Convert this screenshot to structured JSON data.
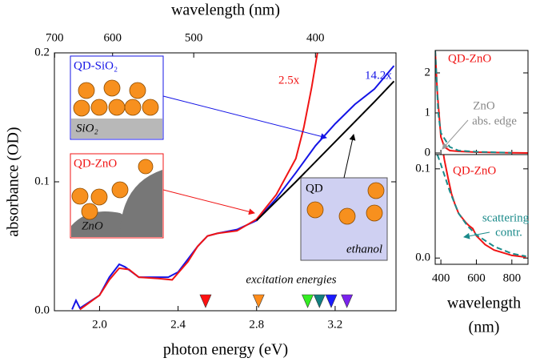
{
  "chart_data": [
    {
      "type": "line",
      "xlabel": "photon energy (eV)",
      "ylabel": "absorbance (OD)",
      "x2label": "wavelength (nm)",
      "xlim": [
        1.77,
        3.51
      ],
      "xticks": [
        {
          "value": 2,
          "label": "2.0"
        },
        2.4,
        2.8,
        3.2
      ],
      "ylim": [
        0,
        0.2
      ],
      "yticks": [
        {
          "value": 0,
          "label": "0.0"
        },
        0.1,
        0.2
      ],
      "x2ticks": [
        700,
        600,
        500,
        400
      ],
      "series": [
        {
          "name": "QD-SiO₂",
          "color": "#1414e6",
          "x": [
            1.86,
            1.88,
            1.9,
            2.0,
            2.05,
            2.1,
            2.13,
            2.2,
            2.3,
            2.35,
            2.4,
            2.45,
            2.5,
            2.55,
            2.6,
            2.7,
            2.8,
            2.9,
            3.0,
            3.1,
            3.2,
            3.3,
            3.4,
            3.5
          ],
          "values": [
            0.001,
            0.008,
            0.002,
            0.012,
            0.026,
            0.036,
            0.034,
            0.026,
            0.026,
            0.026,
            0.03,
            0.04,
            0.05,
            0.058,
            0.06,
            0.063,
            0.07,
            0.087,
            0.107,
            0.128,
            0.145,
            0.16,
            0.172,
            0.19
          ]
        },
        {
          "name": "QD-ZnO",
          "color": "#f01414",
          "x": [
            1.9,
            2.0,
            2.05,
            2.1,
            2.15,
            2.2,
            2.3,
            2.37,
            2.45,
            2.5,
            2.55,
            2.6,
            2.7,
            2.8,
            2.9,
            3.0,
            3.04,
            3.08,
            3.11
          ],
          "values": [
            0.001,
            0.012,
            0.024,
            0.033,
            0.032,
            0.026,
            0.025,
            0.024,
            0.038,
            0.05,
            0.058,
            0.06,
            0.062,
            0.071,
            0.09,
            0.118,
            0.142,
            0.173,
            0.2
          ]
        },
        {
          "name": "QD",
          "color": "#000000",
          "x": [
            2.8,
            3.0,
            3.2,
            3.4,
            3.5
          ],
          "values": [
            0.07,
            0.1,
            0.131,
            0.162,
            0.178
          ]
        }
      ],
      "annotations": {
        "red_factor": "2.5x",
        "blue_factor": "14.2x",
        "sio2": "SiO₂",
        "zno": "ZnO",
        "solvent": "ethanol"
      },
      "excitation": {
        "label": "excitation energies",
        "x": [
          2.54,
          2.81,
          3.06,
          3.12,
          3.18,
          3.26
        ],
        "colors": [
          "#ff1010",
          "#ff8c1a",
          "#33ee22",
          "#118080",
          "#1a1aff",
          "#7a22ee"
        ]
      }
    },
    {
      "type": "line",
      "xlim": [
        368,
        891
      ],
      "xticks": [
        400,
        600,
        800
      ],
      "ylim": [
        -0.04,
        2.56
      ],
      "yticks": [
        0,
        1,
        2
      ],
      "series": [
        {
          "name": "QD-ZnO",
          "color": "#f01414",
          "x": [
            368,
            380,
            400,
            420,
            450,
            500,
            600,
            800,
            890
          ],
          "values": [
            2.56,
            1.5,
            0.4,
            0.15,
            0.06,
            0.04,
            0.02,
            0.005,
            0
          ]
        },
        {
          "color": "#1a8a8a",
          "style": "dashed",
          "x": [
            368,
            385,
            400,
            450,
            500,
            600,
            800
          ],
          "values": [
            2.56,
            1.0,
            0.5,
            0.15,
            0.06,
            0.03,
            0.005
          ]
        }
      ],
      "annotation": [
        "ZnO",
        "abs. edge"
      ]
    },
    {
      "type": "line",
      "xlim": [
        368,
        891
      ],
      "xticks": [
        400,
        600,
        800
      ],
      "ylim": [
        -0.007,
        0.116
      ],
      "yticks": [
        {
          "value": 0,
          "label": "0.0"
        },
        0.1
      ],
      "xlabel": [
        "wavelength",
        "(nm)"
      ],
      "series": [
        {
          "name": "QD-ZnO",
          "color": "#f01414",
          "x": [
            415,
            420,
            440,
            460,
            480,
            500,
            540,
            560,
            580,
            600,
            650,
            700,
            800,
            880
          ],
          "values": [
            0.116,
            0.11,
            0.09,
            0.072,
            0.06,
            0.05,
            0.04,
            0.036,
            0.033,
            0.025,
            0.015,
            0.009,
            0.003,
            0.001
          ]
        },
        {
          "color": "#1a8a8a",
          "style": "dashed",
          "x": [
            380,
            400,
            450,
            500,
            550,
            600,
            700,
            800,
            880
          ],
          "values": [
            0.116,
            0.105,
            0.075,
            0.05,
            0.036,
            0.026,
            0.013,
            0.005,
            0.002
          ]
        }
      ],
      "annotation": [
        "scattering",
        "contr."
      ]
    }
  ]
}
